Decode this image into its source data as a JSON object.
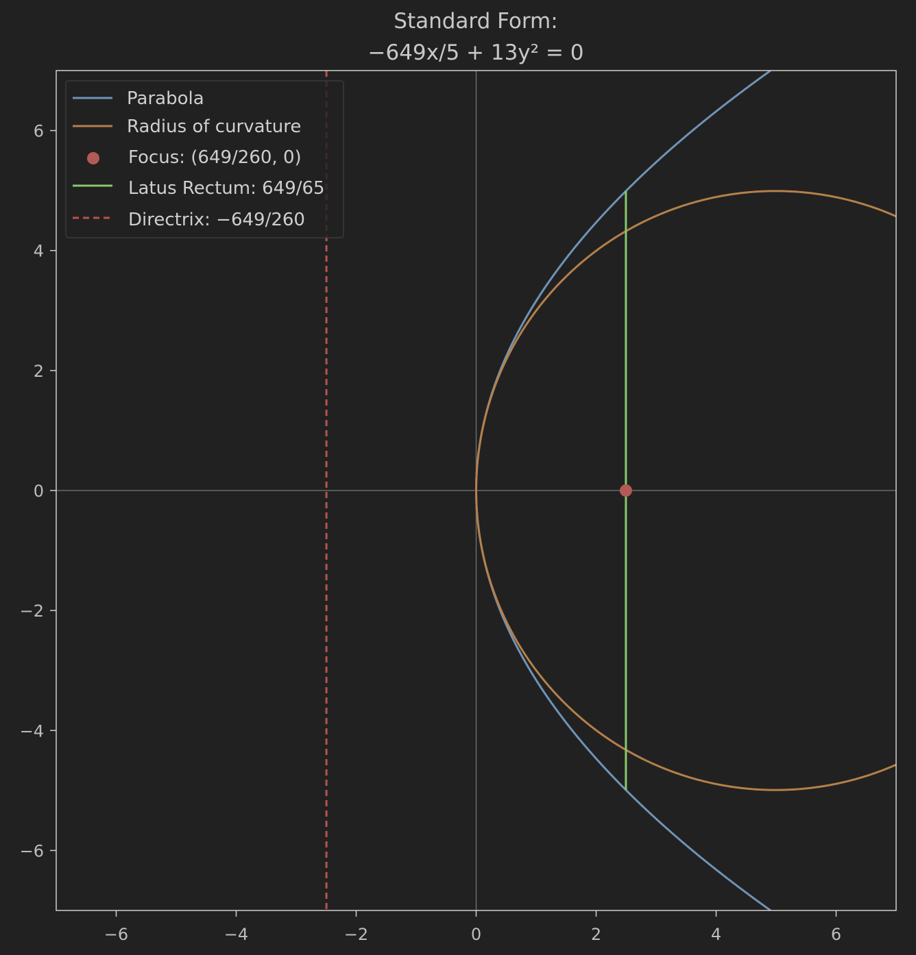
{
  "chart_data": {
    "type": "line",
    "title_line1": "Standard Form:",
    "title_line2": "−649x/5 + 13y² = 0",
    "xlim": [
      -7,
      7
    ],
    "ylim": [
      -7,
      7
    ],
    "xticks": [
      -6,
      -4,
      -2,
      0,
      2,
      4,
      6
    ],
    "yticks": [
      -6,
      -4,
      -2,
      0,
      2,
      4,
      6
    ],
    "xtick_labels": [
      "−6",
      "−4",
      "−2",
      "0",
      "2",
      "4",
      "6"
    ],
    "ytick_labels": [
      "−6",
      "−4",
      "−2",
      "0",
      "2",
      "4",
      "6"
    ],
    "grid": false,
    "legend_position": "top-left",
    "parabola": {
      "name": "Parabola",
      "equation": "x = 13y²/129.8  (y² = 649x/65)",
      "a": 2.496,
      "color": "#6f93b6"
    },
    "curvature_circle": {
      "name": "Radius of curvature",
      "center": [
        4.992,
        0
      ],
      "radius": 4.992,
      "color": "#b5804a"
    },
    "focus": {
      "name": "Focus: (649/260, 0)",
      "x": 2.496,
      "y": 0,
      "color": "#b35a56"
    },
    "latus_rectum": {
      "name": "Latus Rectum: 649/65",
      "x": 2.496,
      "y_range": [
        -4.992,
        4.992
      ],
      "color": "#86c96c"
    },
    "directrix": {
      "name": "Directrix: −649/260",
      "x": -2.496,
      "color": "#b8524d",
      "style": "dashed"
    }
  }
}
